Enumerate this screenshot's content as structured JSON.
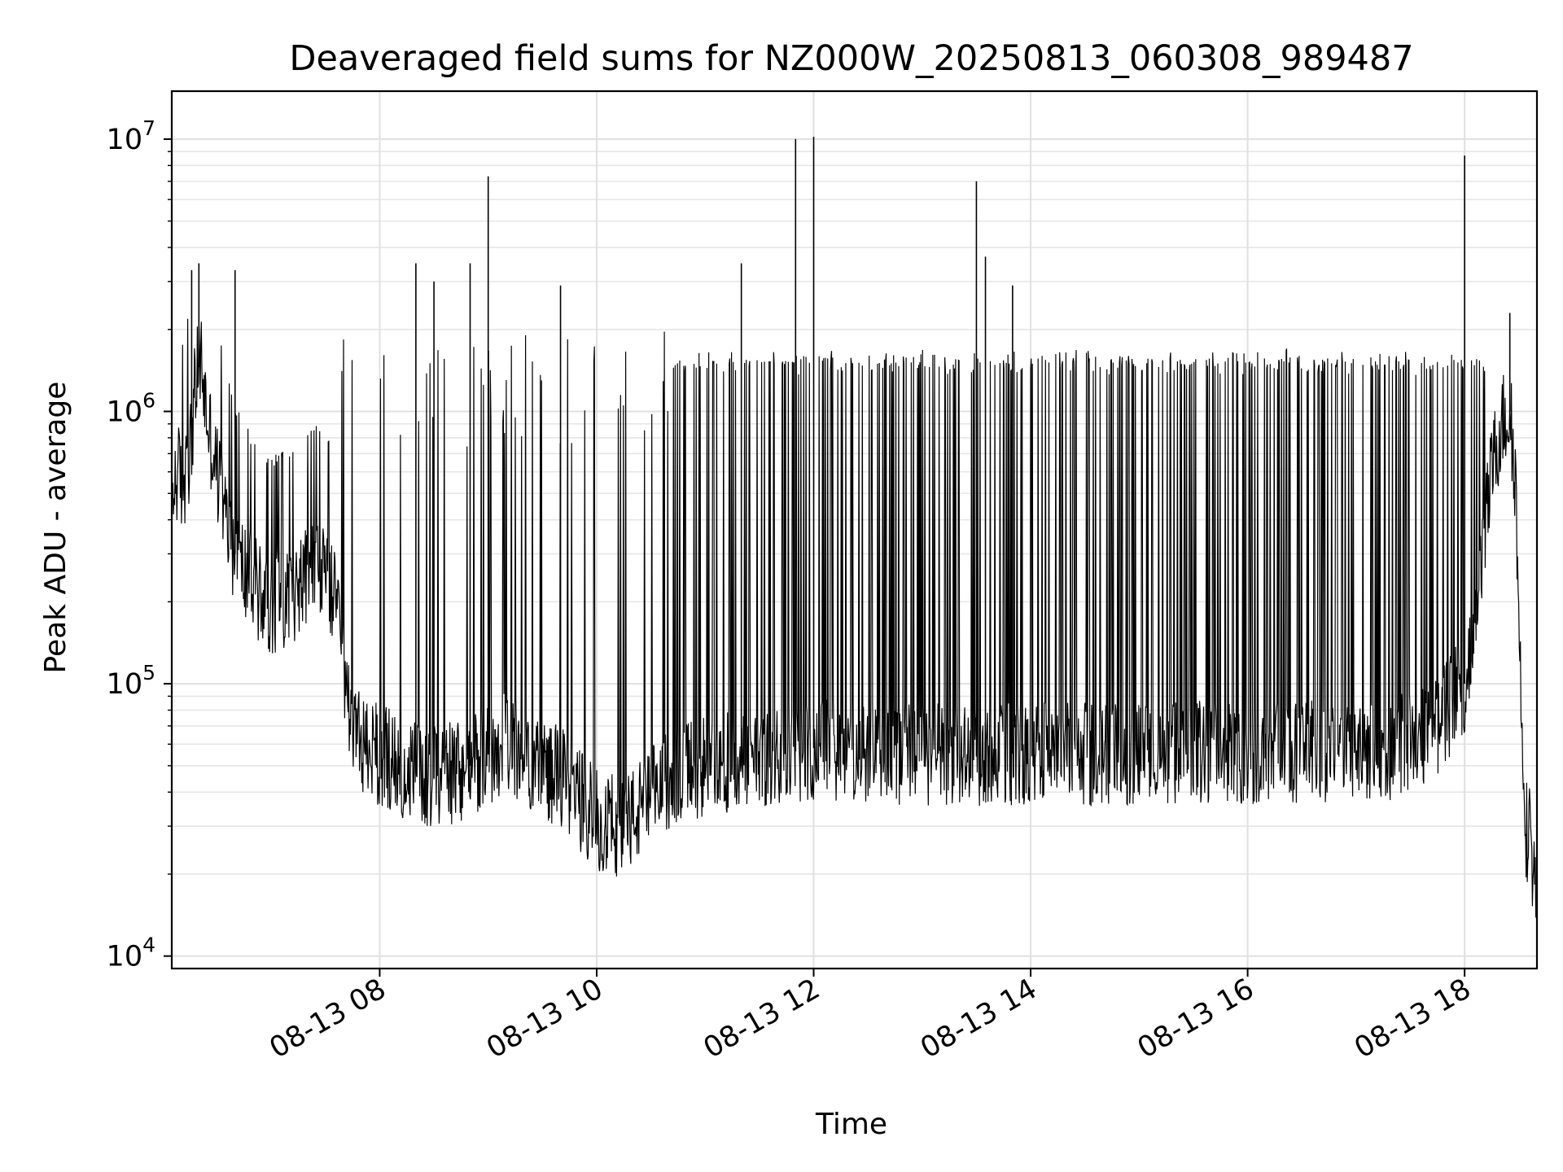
{
  "chart_data": {
    "type": "line",
    "title": "Deaveraged field sums for NZ000W_20250813_060308_989487",
    "xlabel": "Time",
    "ylabel": "Peak ADU - average",
    "yscale": "log",
    "ylim": [
      9000,
      15000000
    ],
    "xlim": [
      "2025-08-13 06:05",
      "2025-08-13 18:40"
    ],
    "grid": true,
    "line_color": "#000000",
    "x_tick_labels": [
      "08-13 08",
      "08-13 10",
      "08-13 12",
      "08-13 14",
      "08-13 16",
      "08-13 18"
    ],
    "x_tick_times": [
      "2025-08-13 08:00",
      "2025-08-13 10:00",
      "2025-08-13 12:00",
      "2025-08-13 14:00",
      "2025-08-13 16:00",
      "2025-08-13 18:00"
    ],
    "y_tick_labels": [
      {
        "base": "10",
        "exp": "4",
        "value": 10000
      },
      {
        "base": "10",
        "exp": "5",
        "value": 100000
      },
      {
        "base": "10",
        "exp": "6",
        "value": 1000000
      },
      {
        "base": "10",
        "exp": "7",
        "value": 10000000
      }
    ],
    "series": [
      {
        "x": [
          "2025-08-13 06:05",
          "2025-08-13 06:08",
          "2025-08-13 06:12",
          "2025-08-13 06:15",
          "2025-08-13 06:18",
          "2025-08-13 06:21",
          "2025-08-13 06:24",
          "2025-08-13 06:28",
          "2025-08-13 06:30",
          "2025-08-13 06:35",
          "2025-08-13 06:40",
          "2025-08-13 06:45",
          "2025-08-13 06:50",
          "2025-08-13 06:55",
          "2025-08-13 07:00",
          "2025-08-13 07:05",
          "2025-08-13 07:10",
          "2025-08-13 07:15",
          "2025-08-13 07:20",
          "2025-08-13 07:25",
          "2025-08-13 07:30",
          "2025-08-13 07:35",
          "2025-08-13 07:40",
          "2025-08-13 07:45",
          "2025-08-13 07:50",
          "2025-08-13 08:00",
          "2025-08-13 08:10",
          "2025-08-13 08:20",
          "2025-08-13 08:30",
          "2025-08-13 08:40",
          "2025-08-13 08:50",
          "2025-08-13 09:00",
          "2025-08-13 09:10",
          "2025-08-13 09:20",
          "2025-08-13 09:30",
          "2025-08-13 09:40",
          "2025-08-13 09:50",
          "2025-08-13 10:00",
          "2025-08-13 10:10",
          "2025-08-13 10:20",
          "2025-08-13 10:30",
          "2025-08-13 10:40",
          "2025-08-13 10:50",
          "2025-08-13 11:00",
          "2025-08-13 11:20",
          "2025-08-13 11:40",
          "2025-08-13 12:00",
          "2025-08-13 12:30",
          "2025-08-13 13:00",
          "2025-08-13 13:30",
          "2025-08-13 14:00",
          "2025-08-13 14:30",
          "2025-08-13 15:00",
          "2025-08-13 15:30",
          "2025-08-13 16:00",
          "2025-08-13 16:30",
          "2025-08-13 17:00",
          "2025-08-13 17:20",
          "2025-08-13 17:40",
          "2025-08-13 17:50",
          "2025-08-13 18:00",
          "2025-08-13 18:05",
          "2025-08-13 18:10",
          "2025-08-13 18:15",
          "2025-08-13 18:20",
          "2025-08-13 18:25",
          "2025-08-13 18:28",
          "2025-08-13 18:31",
          "2025-08-13 18:34",
          "2025-08-13 18:37",
          "2025-08-13 18:40"
        ],
        "y": [
          480000,
          600000,
          520000,
          700000,
          1200000,
          1600000,
          1000000,
          700000,
          600000,
          400000,
          300000,
          260000,
          230000,
          210000,
          200000,
          200000,
          210000,
          230000,
          250000,
          260000,
          240000,
          200000,
          110000,
          70000,
          60000,
          55000,
          50000,
          48000,
          45000,
          47000,
          50000,
          55000,
          60000,
          55000,
          50000,
          45000,
          38000,
          32000,
          30000,
          32000,
          38000,
          45000,
          48000,
          50000,
          52000,
          55000,
          58000,
          56000,
          55000,
          54000,
          56000,
          55000,
          55000,
          56000,
          56000,
          56000,
          56000,
          58000,
          65000,
          80000,
          100000,
          150000,
          300000,
          600000,
          900000,
          1000000,
          600000,
          100000,
          30000,
          25000,
          15000
        ]
      }
    ],
    "spikes": [
      {
        "x": "2025-08-13 09:00",
        "y": 7300000
      },
      {
        "x": "2025-08-13 11:50",
        "y": 10000000
      },
      {
        "x": "2025-08-13 12:00",
        "y": 10200000
      },
      {
        "x": "2025-08-13 13:30",
        "y": 7000000
      },
      {
        "x": "2025-08-13 18:00",
        "y": 8700000
      },
      {
        "x": "2025-08-13 06:20",
        "y": 3500000
      },
      {
        "x": "2025-08-13 06:16",
        "y": 3300000
      },
      {
        "x": "2025-08-13 06:40",
        "y": 3300000
      },
      {
        "x": "2025-08-13 08:20",
        "y": 3500000
      },
      {
        "x": "2025-08-13 08:30",
        "y": 3000000
      },
      {
        "x": "2025-08-13 08:50",
        "y": 3500000
      },
      {
        "x": "2025-08-13 09:40",
        "y": 2900000
      },
      {
        "x": "2025-08-13 11:20",
        "y": 3500000
      },
      {
        "x": "2025-08-13 13:35",
        "y": 3700000
      },
      {
        "x": "2025-08-13 13:50",
        "y": 2900000
      },
      {
        "x": "2025-08-13 18:25",
        "y": 2300000
      }
    ]
  }
}
